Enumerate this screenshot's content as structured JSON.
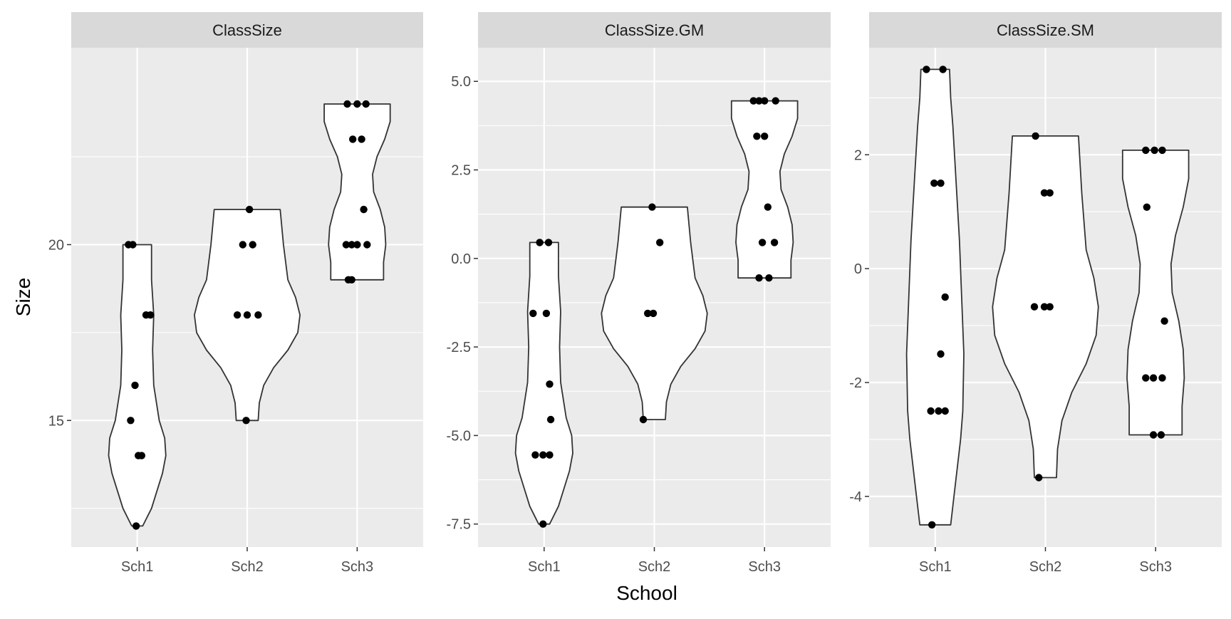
{
  "chart_data": {
    "type": "violin",
    "xlabel": "School",
    "ylabel": "Size",
    "categories": [
      "Sch1",
      "Sch2",
      "Sch3"
    ],
    "colors": {
      "panel": "#ebebeb",
      "strip": "#d9d9d9",
      "grid": "#ffffff",
      "violin_fill": "#ffffff",
      "violin_stroke": "#333333",
      "point": "#000000"
    },
    "panels": [
      {
        "title": "ClassSize",
        "ylim": [
          11.4,
          25.6
        ],
        "yticks": [
          15,
          20
        ],
        "ytick_labels": [
          "15",
          "20"
        ],
        "groups": [
          {
            "category": "Sch1",
            "min": 12,
            "max": 20,
            "widths": [
              [
                12,
                0.05
              ],
              [
                12.5,
                0.13
              ],
              [
                13.5,
                0.23
              ],
              [
                14,
                0.26
              ],
              [
                14.5,
                0.25
              ],
              [
                15,
                0.2
              ],
              [
                16,
                0.15
              ],
              [
                17,
                0.14
              ],
              [
                18,
                0.15
              ],
              [
                19,
                0.13
              ],
              [
                20,
                0.13
              ]
            ],
            "points": [
              [
                12,
                -0.01
              ],
              [
                14,
                0.01
              ],
              [
                14,
                0.04
              ],
              [
                15,
                -0.06
              ],
              [
                16,
                -0.02
              ],
              [
                18,
                0.08
              ],
              [
                18,
                0.12
              ],
              [
                20,
                -0.08
              ],
              [
                20,
                -0.04
              ]
            ]
          },
          {
            "category": "Sch2",
            "min": 15,
            "max": 21,
            "widths": [
              [
                15,
                0.1
              ],
              [
                15.5,
                0.11
              ],
              [
                16,
                0.15
              ],
              [
                16.5,
                0.24
              ],
              [
                17,
                0.37
              ],
              [
                17.5,
                0.46
              ],
              [
                18,
                0.48
              ],
              [
                18.5,
                0.44
              ],
              [
                19,
                0.37
              ],
              [
                20,
                0.33
              ],
              [
                21,
                0.3
              ]
            ],
            "points": [
              [
                15,
                -0.01
              ],
              [
                18,
                -0.09
              ],
              [
                18,
                0.0
              ],
              [
                18,
                0.1
              ],
              [
                20,
                -0.04
              ],
              [
                20,
                0.05
              ],
              [
                21,
                0.02
              ]
            ]
          },
          {
            "category": "Sch3",
            "min": 19,
            "max": 24,
            "widths": [
              [
                19,
                0.24
              ],
              [
                19.5,
                0.24
              ],
              [
                20,
                0.26
              ],
              [
                20.5,
                0.25
              ],
              [
                21,
                0.21
              ],
              [
                21.5,
                0.15
              ],
              [
                22,
                0.14
              ],
              [
                22.5,
                0.18
              ],
              [
                23,
                0.25
              ],
              [
                23.5,
                0.3
              ],
              [
                24,
                0.3
              ]
            ],
            "points": [
              [
                19,
                -0.08
              ],
              [
                19,
                -0.05
              ],
              [
                20,
                -0.1
              ],
              [
                20,
                0.0
              ],
              [
                20,
                0.09
              ],
              [
                20,
                -0.05
              ],
              [
                21,
                0.06
              ],
              [
                23,
                -0.04
              ],
              [
                23,
                0.04
              ],
              [
                24,
                -0.09
              ],
              [
                24,
                0.0
              ],
              [
                24,
                0.08
              ]
            ]
          }
        ]
      },
      {
        "title": "ClassSize.GM",
        "ylim": [
          -8.15,
          5.95
        ],
        "yticks": [
          -7.5,
          -5.0,
          -2.5,
          0.0,
          2.5,
          5.0
        ],
        "ytick_labels": [
          "-7.5",
          "-5.0",
          "-2.5",
          "0.0",
          "2.5",
          "5.0"
        ],
        "groups": [
          {
            "category": "Sch1",
            "min": -7.5,
            "max": 0.45,
            "widths": [
              [
                -7.5,
                0.05
              ],
              [
                -7.0,
                0.13
              ],
              [
                -6.0,
                0.23
              ],
              [
                -5.5,
                0.26
              ],
              [
                -5.0,
                0.25
              ],
              [
                -4.5,
                0.2
              ],
              [
                -3.5,
                0.15
              ],
              [
                -2.5,
                0.14
              ],
              [
                -1.5,
                0.15
              ],
              [
                -0.5,
                0.13
              ],
              [
                0.45,
                0.13
              ]
            ],
            "points": [
              [
                -7.5,
                -0.01
              ],
              [
                -5.55,
                -0.08
              ],
              [
                -5.55,
                -0.01
              ],
              [
                -5.55,
                0.05
              ],
              [
                -4.55,
                0.06
              ],
              [
                -3.55,
                0.05
              ],
              [
                -1.55,
                -0.1
              ],
              [
                -1.55,
                0.02
              ],
              [
                0.45,
                -0.04
              ],
              [
                0.45,
                0.04
              ]
            ]
          },
          {
            "category": "Sch2",
            "min": -4.55,
            "max": 1.45,
            "widths": [
              [
                -4.55,
                0.1
              ],
              [
                -4.05,
                0.11
              ],
              [
                -3.55,
                0.15
              ],
              [
                -3.05,
                0.24
              ],
              [
                -2.55,
                0.37
              ],
              [
                -2.05,
                0.46
              ],
              [
                -1.55,
                0.48
              ],
              [
                -1.05,
                0.44
              ],
              [
                -0.55,
                0.37
              ],
              [
                0.45,
                0.33
              ],
              [
                1.45,
                0.3
              ]
            ],
            "points": [
              [
                -4.55,
                -0.1
              ],
              [
                -1.55,
                -0.06
              ],
              [
                -1.55,
                -0.01
              ],
              [
                0.45,
                0.05
              ],
              [
                1.45,
                -0.02
              ]
            ]
          },
          {
            "category": "Sch3",
            "min": -0.55,
            "max": 4.45,
            "widths": [
              [
                -0.55,
                0.24
              ],
              [
                -0.05,
                0.24
              ],
              [
                0.45,
                0.26
              ],
              [
                0.95,
                0.25
              ],
              [
                1.45,
                0.21
              ],
              [
                1.95,
                0.15
              ],
              [
                2.45,
                0.14
              ],
              [
                2.95,
                0.18
              ],
              [
                3.45,
                0.25
              ],
              [
                3.95,
                0.3
              ],
              [
                4.45,
                0.3
              ]
            ],
            "points": [
              [
                -0.55,
                -0.05
              ],
              [
                -0.55,
                0.04
              ],
              [
                0.45,
                -0.02
              ],
              [
                0.45,
                0.09
              ],
              [
                1.45,
                0.03
              ],
              [
                3.45,
                -0.07
              ],
              [
                3.45,
                0.0
              ],
              [
                4.45,
                -0.1
              ],
              [
                4.45,
                -0.05
              ],
              [
                4.45,
                0.0
              ],
              [
                4.45,
                0.1
              ]
            ]
          }
        ]
      },
      {
        "title": "ClassSize.SM",
        "ylim": [
          -4.89,
          3.88
        ],
        "yticks": [
          -4,
          -2,
          0,
          2
        ],
        "ytick_labels": [
          "-4",
          "-2",
          "0",
          "2"
        ],
        "groups": [
          {
            "category": "Sch1",
            "min": -4.5,
            "max": 3.5,
            "widths": [
              [
                -4.5,
                0.14
              ],
              [
                -4.0,
                0.17
              ],
              [
                -3.0,
                0.23
              ],
              [
                -2.5,
                0.25
              ],
              [
                -1.5,
                0.26
              ],
              [
                -0.5,
                0.24
              ],
              [
                0.5,
                0.22
              ],
              [
                1.5,
                0.19
              ],
              [
                2.5,
                0.16
              ],
              [
                3.0,
                0.14
              ],
              [
                3.5,
                0.13
              ]
            ],
            "points": [
              [
                -4.5,
                -0.03
              ],
              [
                -2.5,
                -0.04
              ],
              [
                -2.5,
                0.03
              ],
              [
                -2.5,
                0.09
              ],
              [
                -1.5,
                0.05
              ],
              [
                -0.5,
                0.09
              ],
              [
                1.5,
                -0.01
              ],
              [
                1.5,
                0.05
              ],
              [
                3.5,
                -0.08
              ],
              [
                3.5,
                0.07
              ]
            ]
          },
          {
            "category": "Sch2",
            "min": -3.67,
            "max": 2.33,
            "widths": [
              [
                -3.67,
                0.1
              ],
              [
                -3.17,
                0.11
              ],
              [
                -2.67,
                0.15
              ],
              [
                -2.17,
                0.24
              ],
              [
                -1.67,
                0.37
              ],
              [
                -1.17,
                0.46
              ],
              [
                -0.67,
                0.48
              ],
              [
                -0.17,
                0.44
              ],
              [
                0.33,
                0.37
              ],
              [
                1.33,
                0.33
              ],
              [
                2.33,
                0.3
              ]
            ],
            "points": [
              [
                -3.67,
                -0.06
              ],
              [
                -0.67,
                -0.1
              ],
              [
                -0.67,
                -0.01
              ],
              [
                -0.67,
                0.04
              ],
              [
                1.33,
                -0.01
              ],
              [
                1.33,
                0.04
              ],
              [
                2.33,
                -0.09
              ]
            ]
          },
          {
            "category": "Sch3",
            "min": -2.92,
            "max": 2.08,
            "widths": [
              [
                -2.92,
                0.24
              ],
              [
                -2.42,
                0.24
              ],
              [
                -1.92,
                0.26
              ],
              [
                -1.42,
                0.25
              ],
              [
                -0.92,
                0.21
              ],
              [
                -0.42,
                0.15
              ],
              [
                0.08,
                0.14
              ],
              [
                0.58,
                0.18
              ],
              [
                1.08,
                0.25
              ],
              [
                1.58,
                0.3
              ],
              [
                2.08,
                0.3
              ]
            ],
            "points": [
              [
                -2.92,
                -0.02
              ],
              [
                -2.92,
                0.05
              ],
              [
                -1.92,
                -0.09
              ],
              [
                -1.92,
                -0.02
              ],
              [
                -1.92,
                0.06
              ],
              [
                -0.92,
                0.08
              ],
              [
                1.08,
                -0.08
              ],
              [
                2.08,
                -0.09
              ],
              [
                2.08,
                -0.01
              ],
              [
                2.08,
                0.06
              ]
            ]
          }
        ]
      }
    ]
  }
}
